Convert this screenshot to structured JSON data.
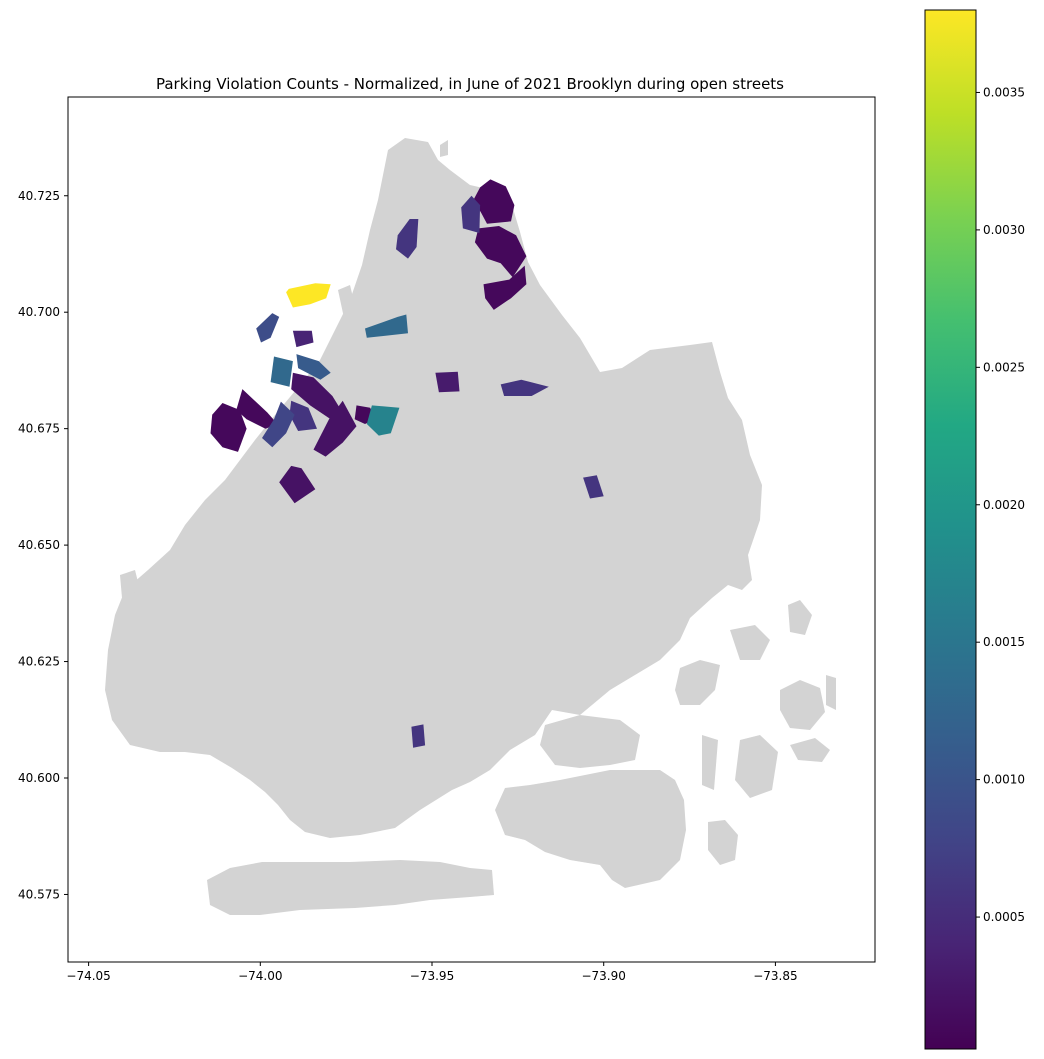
{
  "chart_data": {
    "type": "choropleth",
    "title": "Parking Violation Counts - Normalized, in June of 2021 Brooklyn during open streets",
    "xlim": [
      -74.056,
      -73.821
    ],
    "ylim": [
      40.5605,
      40.7462
    ],
    "x_ticks": [
      {
        "value": -74.05,
        "label": "−74.05"
      },
      {
        "value": -74.0,
        "label": "−74.00"
      },
      {
        "value": -73.95,
        "label": "−73.95"
      },
      {
        "value": -73.9,
        "label": "−73.90"
      },
      {
        "value": -73.85,
        "label": "−73.85"
      }
    ],
    "y_ticks": [
      {
        "value": 40.575,
        "label": "40.575"
      },
      {
        "value": 40.6,
        "label": "40.600"
      },
      {
        "value": 40.625,
        "label": "40.625"
      },
      {
        "value": 40.65,
        "label": "40.650"
      },
      {
        "value": 40.675,
        "label": "40.675"
      },
      {
        "value": 40.7,
        "label": "40.700"
      },
      {
        "value": 40.725,
        "label": "40.725"
      }
    ],
    "colorbar": {
      "colormap": "viridis",
      "min": 2e-05,
      "max": 0.0038,
      "ticks": [
        {
          "value": 0.0005,
          "label": "0.0005"
        },
        {
          "value": 0.001,
          "label": "0.0010"
        },
        {
          "value": 0.0015,
          "label": "0.0015"
        },
        {
          "value": 0.002,
          "label": "0.0020"
        },
        {
          "value": 0.0025,
          "label": "0.0025"
        },
        {
          "value": 0.003,
          "label": "0.0030"
        },
        {
          "value": 0.0035,
          "label": "0.0035"
        }
      ]
    },
    "background_color": "#d3d3d3",
    "regions": [
      {
        "value": 0.0038,
        "coords": [
          [
            -73.9917,
            40.705
          ],
          [
            -73.984,
            40.7062
          ],
          [
            -73.9795,
            40.706
          ],
          [
            -73.9808,
            40.703
          ],
          [
            -73.9855,
            40.7017
          ],
          [
            -73.9905,
            40.701
          ],
          [
            -73.9925,
            40.7043
          ]
        ]
      },
      {
        "value": 0.0001,
        "coords": [
          [
            -73.938,
            40.724
          ],
          [
            -73.936,
            40.7268
          ],
          [
            -73.933,
            40.7285
          ],
          [
            -73.9285,
            40.727
          ],
          [
            -73.926,
            40.723
          ],
          [
            -73.927,
            40.7195
          ],
          [
            -73.934,
            40.719
          ],
          [
            -73.9358,
            40.7215
          ]
        ]
      },
      {
        "value": 0.0001,
        "coords": [
          [
            -73.9365,
            40.718
          ],
          [
            -73.9305,
            40.7185
          ],
          [
            -73.9255,
            40.7165
          ],
          [
            -73.9225,
            40.712
          ],
          [
            -73.9265,
            40.7075
          ],
          [
            -73.93,
            40.7105
          ],
          [
            -73.934,
            40.7115
          ],
          [
            -73.9375,
            40.715
          ]
        ]
      },
      {
        "value": 0.0001,
        "coords": [
          [
            -73.935,
            40.706
          ],
          [
            -73.9275,
            40.707
          ],
          [
            -73.923,
            40.71
          ],
          [
            -73.9225,
            40.706
          ],
          [
            -73.927,
            40.703
          ],
          [
            -73.932,
            40.7005
          ],
          [
            -73.9345,
            40.703
          ]
        ]
      },
      {
        "value": 0.0006,
        "coords": [
          [
            -73.9415,
            40.7225
          ],
          [
            -73.9385,
            40.725
          ],
          [
            -73.936,
            40.723
          ],
          [
            -73.9362,
            40.717
          ],
          [
            -73.941,
            40.718
          ]
        ]
      },
      {
        "value": 0.0006,
        "coords": [
          [
            -73.96,
            40.7165
          ],
          [
            -73.9565,
            40.72
          ],
          [
            -73.954,
            40.72
          ],
          [
            -73.9545,
            40.714
          ],
          [
            -73.957,
            40.7115
          ],
          [
            -73.9605,
            40.7135
          ]
        ]
      },
      {
        "value": 0.0013,
        "coords": [
          [
            -73.9695,
            40.6965
          ],
          [
            -73.96,
            40.699
          ],
          [
            -73.9575,
            40.6995
          ],
          [
            -73.957,
            40.6955
          ],
          [
            -73.969,
            40.6945
          ]
        ]
      },
      {
        "value": 0.0009,
        "coords": [
          [
            -74.0012,
            40.6965
          ],
          [
            -73.9965,
            40.6998
          ],
          [
            -73.9945,
            40.699
          ],
          [
            -73.997,
            40.6945
          ],
          [
            -73.9998,
            40.6935
          ]
        ]
      },
      {
        "value": 0.0004,
        "coords": [
          [
            -73.9905,
            40.696
          ],
          [
            -73.985,
            40.696
          ],
          [
            -73.9845,
            40.6935
          ],
          [
            -73.9895,
            40.6925
          ]
        ]
      },
      {
        "value": 0.0013,
        "coords": [
          [
            -73.996,
            40.6905
          ],
          [
            -73.9905,
            40.6895
          ],
          [
            -73.9915,
            40.684
          ],
          [
            -73.997,
            40.685
          ]
        ]
      },
      {
        "value": 0.0011,
        "coords": [
          [
            -73.9895,
            40.691
          ],
          [
            -73.983,
            40.6895
          ],
          [
            -73.9795,
            40.687
          ],
          [
            -73.9825,
            40.6855
          ],
          [
            -73.989,
            40.688
          ]
        ]
      },
      {
        "value": 0.0002,
        "coords": [
          [
            -73.9905,
            40.687
          ],
          [
            -73.9845,
            40.686
          ],
          [
            -73.979,
            40.682
          ],
          [
            -73.9765,
            40.679
          ],
          [
            -73.9795,
            40.677
          ],
          [
            -73.9855,
            40.68
          ],
          [
            -73.991,
            40.6835
          ]
        ]
      },
      {
        "value": 0.0002,
        "coords": [
          [
            -73.976,
            40.681
          ],
          [
            -73.972,
            40.6755
          ],
          [
            -73.976,
            40.672
          ],
          [
            -73.981,
            40.669
          ],
          [
            -73.9845,
            40.6705
          ],
          [
            -73.98,
            40.677
          ]
        ]
      },
      {
        "value": 0.0006,
        "coords": [
          [
            -73.991,
            40.681
          ],
          [
            -73.986,
            40.6795
          ],
          [
            -73.9835,
            40.675
          ],
          [
            -73.989,
            40.6745
          ],
          [
            -73.9915,
            40.678
          ]
        ]
      },
      {
        "value": 0.0001,
        "coords": [
          [
            -74.0052,
            40.6835
          ],
          [
            -73.998,
            40.6785
          ],
          [
            -73.995,
            40.676
          ],
          [
            -73.9985,
            40.675
          ],
          [
            -74.004,
            40.677
          ],
          [
            -74.007,
            40.679
          ]
        ]
      },
      {
        "value": 0.0001,
        "coords": [
          [
            -74.011,
            40.6805
          ],
          [
            -74.006,
            40.679
          ],
          [
            -74.004,
            40.675
          ],
          [
            -74.0065,
            40.67
          ],
          [
            -74.011,
            40.671
          ],
          [
            -74.0145,
            40.674
          ],
          [
            -74.014,
            40.678
          ]
        ]
      },
      {
        "value": 0.0008,
        "coords": [
          [
            -73.994,
            40.6808
          ],
          [
            -73.99,
            40.678
          ],
          [
            -73.9925,
            40.674
          ],
          [
            -73.9965,
            40.671
          ],
          [
            -73.9995,
            40.673
          ],
          [
            -73.996,
            40.677
          ]
        ]
      },
      {
        "value": 0.0002,
        "coords": [
          [
            -73.988,
            40.6665
          ],
          [
            -73.984,
            40.662
          ],
          [
            -73.99,
            40.659
          ],
          [
            -73.9945,
            40.6635
          ],
          [
            -73.991,
            40.667
          ]
        ]
      },
      {
        "value": 0.0001,
        "coords": [
          [
            -73.972,
            40.68
          ],
          [
            -73.968,
            40.6795
          ],
          [
            -73.9665,
            40.677
          ],
          [
            -73.9695,
            40.676
          ],
          [
            -73.9725,
            40.677
          ]
        ]
      },
      {
        "value": 0.0017,
        "coords": [
          [
            -73.9675,
            40.68
          ],
          [
            -73.9595,
            40.6795
          ],
          [
            -73.962,
            40.674
          ],
          [
            -73.9655,
            40.6735
          ],
          [
            -73.969,
            40.676
          ]
        ]
      },
      {
        "value": 0.0003,
        "coords": [
          [
            -73.949,
            40.687
          ],
          [
            -73.9425,
            40.6872
          ],
          [
            -73.942,
            40.683
          ],
          [
            -73.948,
            40.6828
          ]
        ]
      },
      {
        "value": 0.0006,
        "coords": [
          [
            -73.93,
            40.6845
          ],
          [
            -73.924,
            40.6855
          ],
          [
            -73.916,
            40.684
          ],
          [
            -73.921,
            40.682
          ],
          [
            -73.929,
            40.682
          ]
        ]
      },
      {
        "value": 0.0006,
        "coords": [
          [
            -73.906,
            40.6645
          ],
          [
            -73.902,
            40.665
          ],
          [
            -73.9,
            40.6605
          ],
          [
            -73.904,
            40.66
          ]
        ]
      },
      {
        "value": 0.0006,
        "coords": [
          [
            -73.956,
            40.611
          ],
          [
            -73.9525,
            40.6115
          ],
          [
            -73.952,
            40.607
          ],
          [
            -73.9555,
            40.6065
          ]
        ]
      }
    ]
  }
}
